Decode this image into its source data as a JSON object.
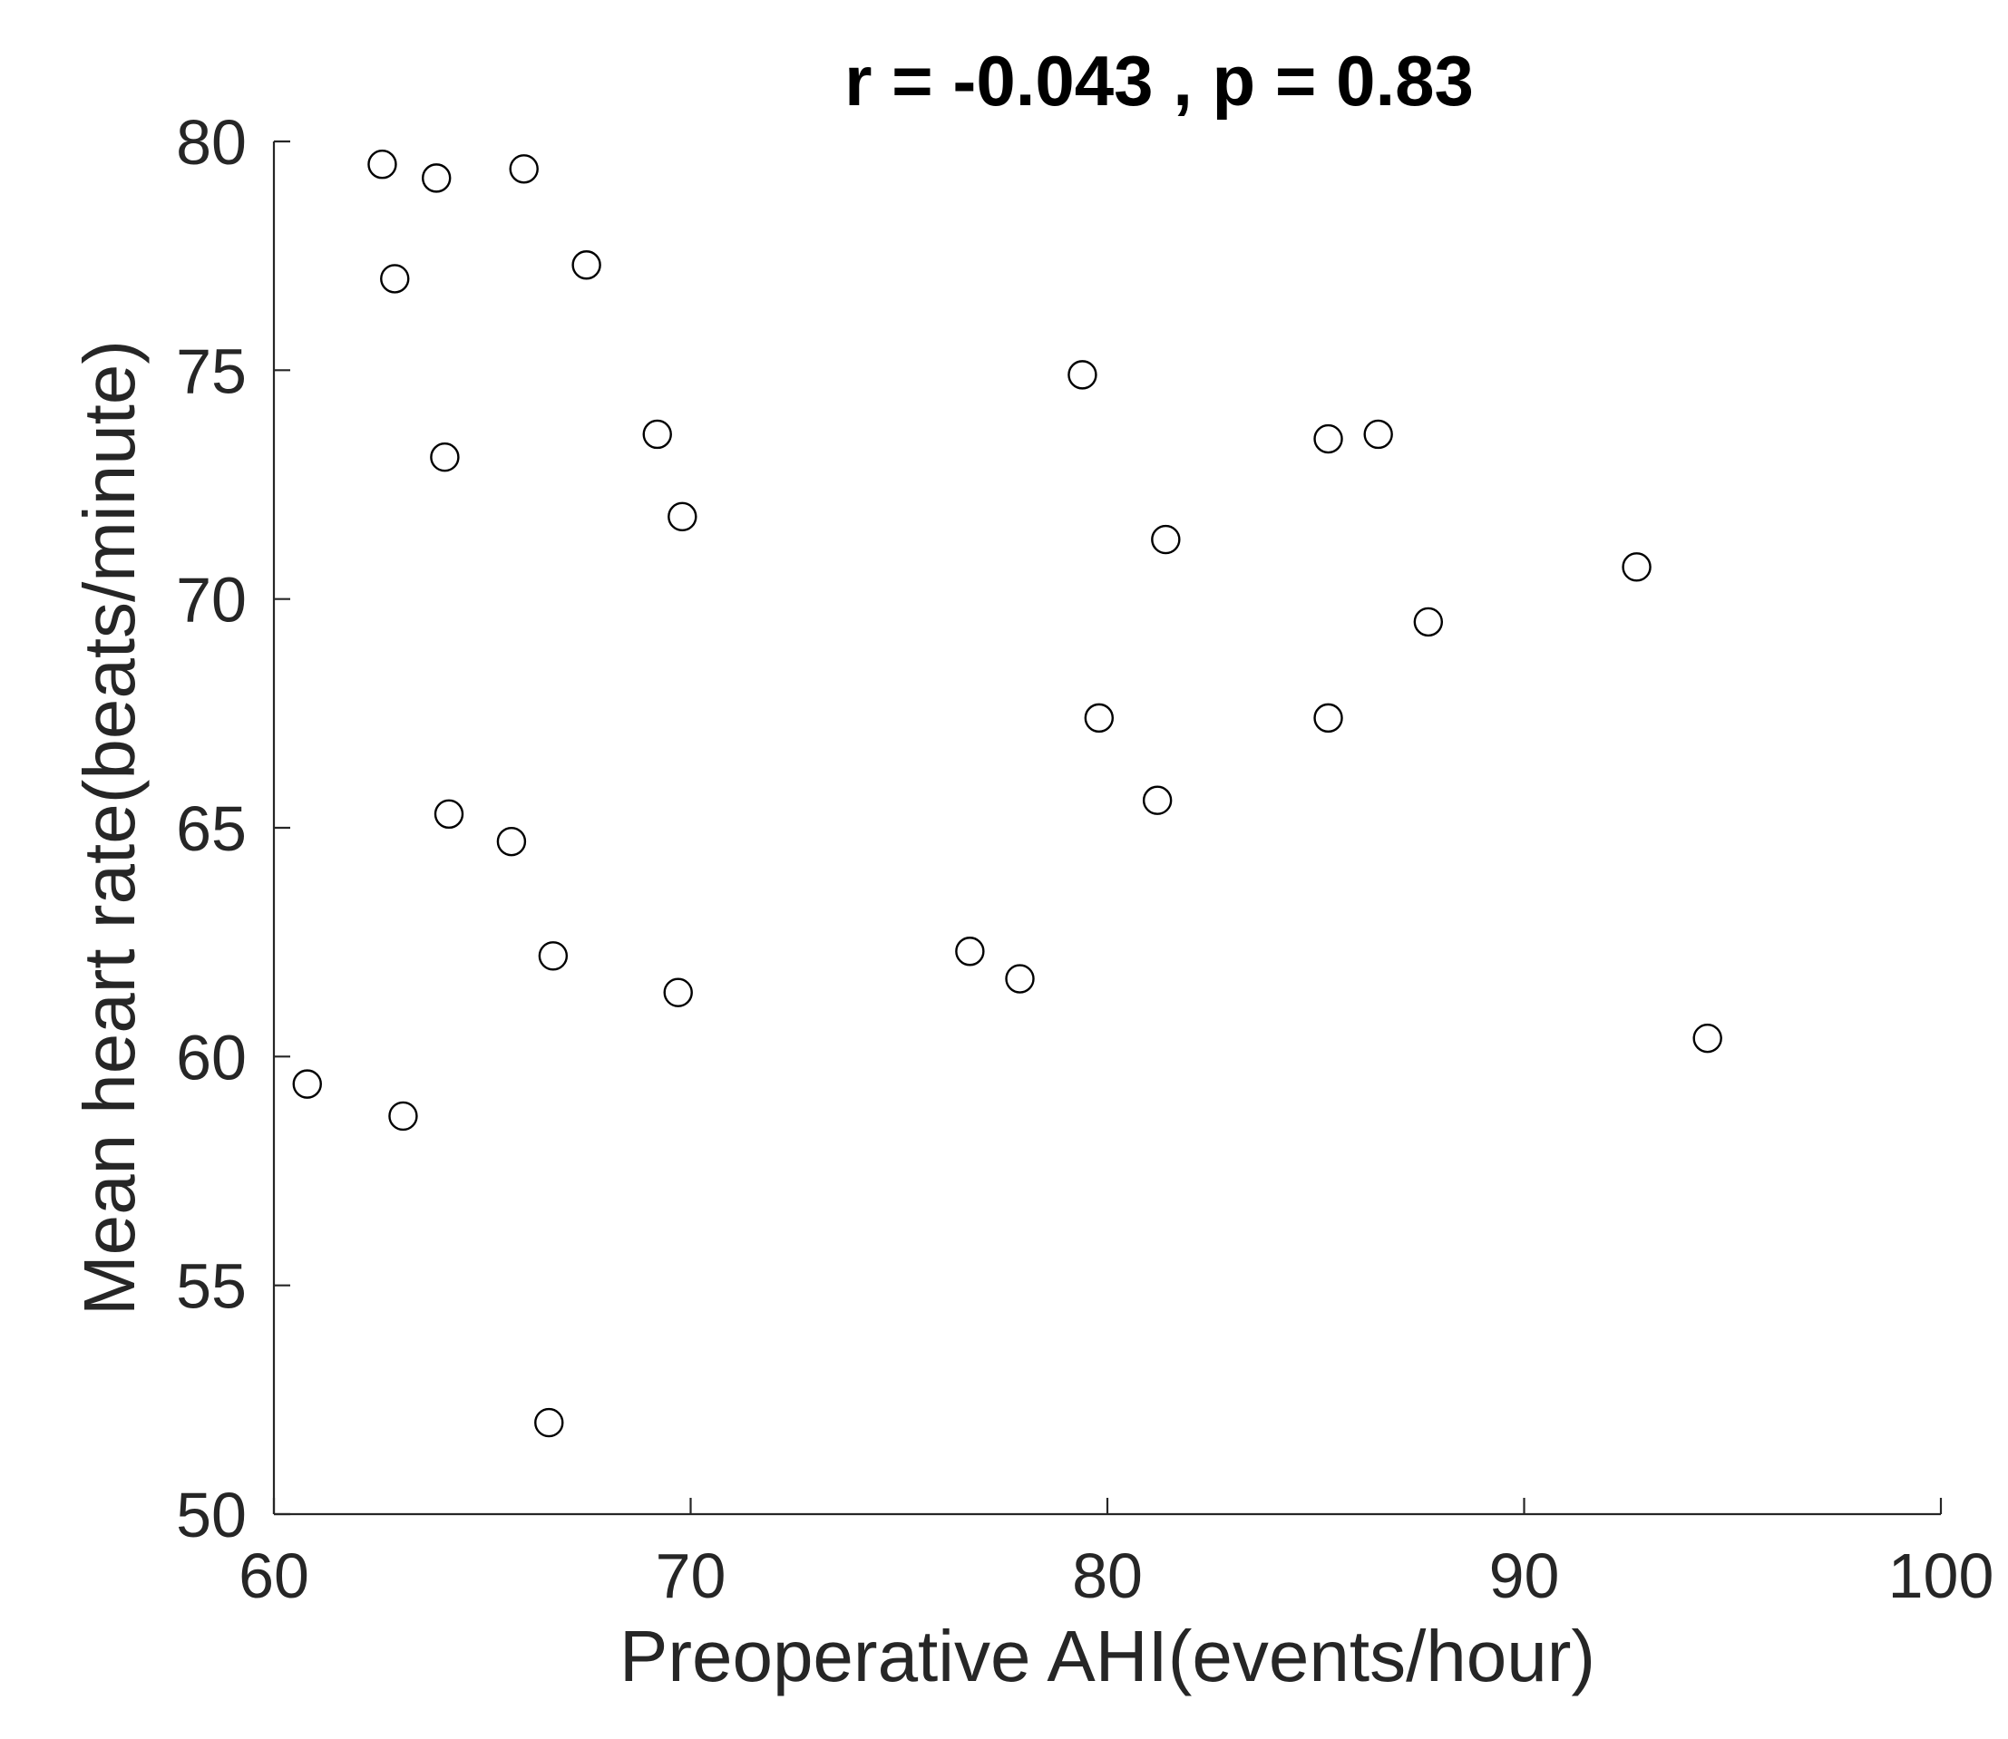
{
  "chart_data": {
    "type": "scatter",
    "title": "r = -0.043 , p = 0.83",
    "xlabel": "Preoperative AHI(events/hour)",
    "ylabel": "Mean heart rate(beats/minute)",
    "xlim": [
      60,
      100
    ],
    "ylim": [
      50,
      80
    ],
    "xticks": [
      60,
      70,
      80,
      90,
      100
    ],
    "xtick_labels": [
      "60",
      "70",
      "80",
      "90",
      "100"
    ],
    "yticks": [
      50,
      55,
      60,
      65,
      70,
      75,
      80
    ],
    "ytick_labels": [
      "50",
      "55",
      "60",
      "65",
      "70",
      "75",
      "80"
    ],
    "grid": false,
    "marker": "open-circle",
    "colors": {
      "marker_edge": "#000000",
      "marker_fill": "#ffffff",
      "axis": "#262626"
    },
    "points": [
      {
        "x": 62.6,
        "y": 79.5
      },
      {
        "x": 63.9,
        "y": 79.2
      },
      {
        "x": 66.0,
        "y": 79.4
      },
      {
        "x": 62.9,
        "y": 77.0
      },
      {
        "x": 67.5,
        "y": 77.3
      },
      {
        "x": 79.4,
        "y": 74.9
      },
      {
        "x": 69.2,
        "y": 73.6
      },
      {
        "x": 64.1,
        "y": 73.1
      },
      {
        "x": 85.3,
        "y": 73.5
      },
      {
        "x": 86.5,
        "y": 73.6
      },
      {
        "x": 69.8,
        "y": 71.8
      },
      {
        "x": 81.4,
        "y": 71.3
      },
      {
        "x": 92.7,
        "y": 70.7
      },
      {
        "x": 87.7,
        "y": 69.5
      },
      {
        "x": 79.8,
        "y": 67.4
      },
      {
        "x": 85.3,
        "y": 67.4
      },
      {
        "x": 81.2,
        "y": 65.6
      },
      {
        "x": 64.2,
        "y": 65.3
      },
      {
        "x": 65.7,
        "y": 64.7
      },
      {
        "x": 66.7,
        "y": 62.2
      },
      {
        "x": 76.7,
        "y": 62.3
      },
      {
        "x": 77.9,
        "y": 61.7
      },
      {
        "x": 69.7,
        "y": 61.4
      },
      {
        "x": 94.4,
        "y": 60.4
      },
      {
        "x": 60.8,
        "y": 59.4
      },
      {
        "x": 63.1,
        "y": 58.7
      },
      {
        "x": 66.6,
        "y": 52.0
      }
    ]
  }
}
